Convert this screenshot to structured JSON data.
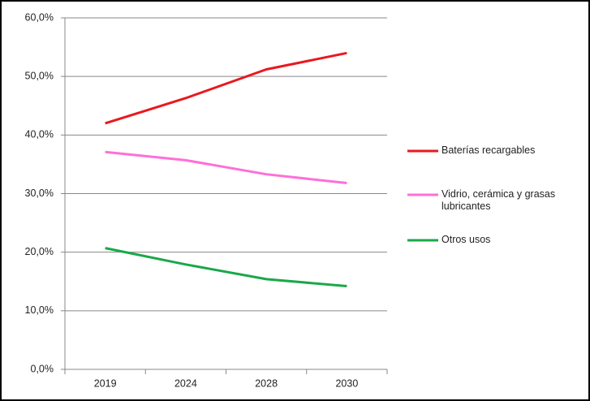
{
  "chart_data": {
    "type": "line",
    "categories": [
      "2019",
      "2024",
      "2028",
      "2030"
    ],
    "series": [
      {
        "name": "Baterías recargables",
        "color": "#e8191f",
        "values": [
          42.0,
          46.3,
          51.2,
          54.0
        ]
      },
      {
        "name": "Vidrio, cerámica y grasas lubricantes",
        "color": "#ff6fd8",
        "values": [
          37.1,
          35.7,
          33.3,
          31.8
        ]
      },
      {
        "name": "Otros usos",
        "color": "#1aa84a",
        "values": [
          20.7,
          17.9,
          15.4,
          14.2
        ]
      }
    ],
    "ylim": [
      0,
      60
    ],
    "yticks": [
      {
        "value": 0,
        "label": "0,0%"
      },
      {
        "value": 10,
        "label": "10,0%"
      },
      {
        "value": 20,
        "label": "20,0%"
      },
      {
        "value": 30,
        "label": "30,0%"
      },
      {
        "value": 40,
        "label": "40,0%"
      },
      {
        "value": 50,
        "label": "50,0%"
      },
      {
        "value": 60,
        "label": "60,0%"
      }
    ],
    "grid": true,
    "legend": "right"
  }
}
